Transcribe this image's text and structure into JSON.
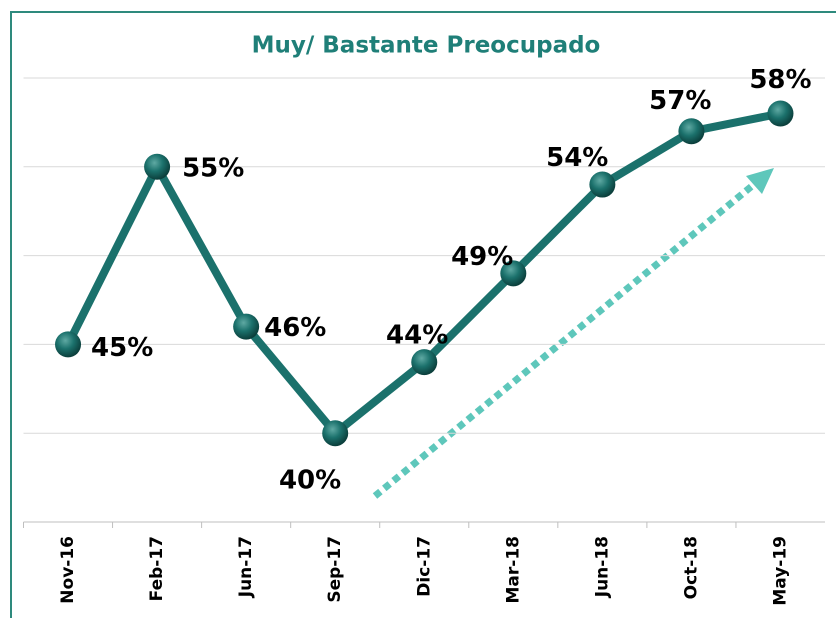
{
  "chart_data": {
    "type": "line",
    "title": "Muy/ Bastante Preocupado",
    "categories": [
      "Nov-16",
      "Feb-17",
      "Jun-17",
      "Sep-17",
      "Dic-17",
      "Mar-18",
      "Jun-18",
      "Oct-18",
      "May-19"
    ],
    "series": [
      {
        "name": "Muy/ Bastante Preocupado",
        "color": "#1b716c",
        "values": [
          45,
          55,
          46,
          40,
          44,
          49,
          54,
          57,
          58
        ],
        "value_labels": [
          "45%",
          "55%",
          "46%",
          "40%",
          "44%",
          "49%",
          "54%",
          "57%",
          "58%"
        ]
      }
    ],
    "ylim": [
      35,
      60
    ],
    "yticks": [
      35,
      40,
      45,
      50,
      55,
      60
    ],
    "grid": true
  }
}
